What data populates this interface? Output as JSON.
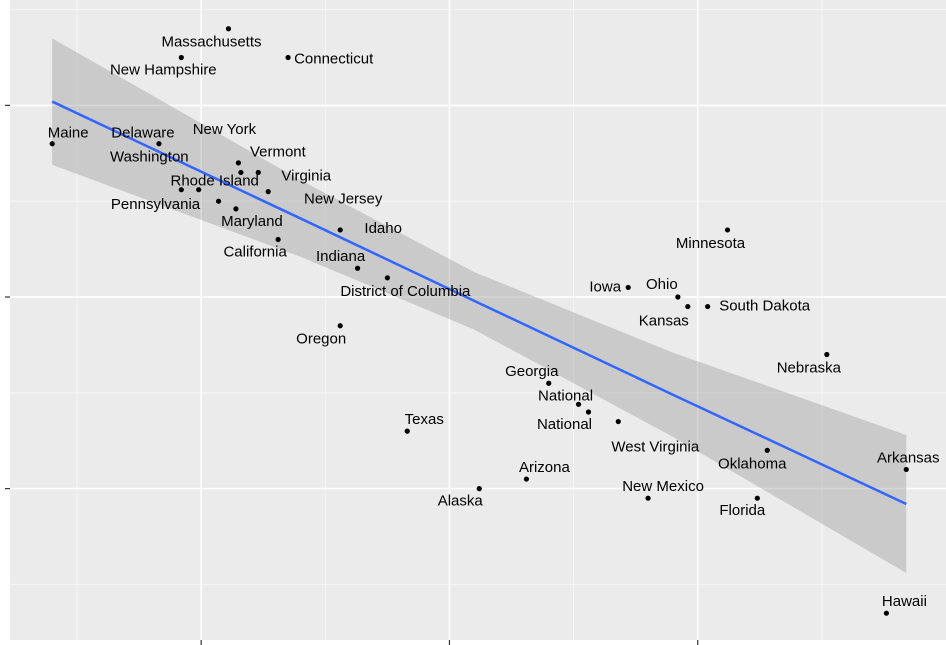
{
  "chart_data": {
    "type": "scatter",
    "xlim": [
      -0.77,
      3.0
    ],
    "ylim": [
      -0.79,
      2.55
    ],
    "xticks": [
      0,
      1,
      2
    ],
    "yticks": [
      0,
      1,
      2
    ],
    "grid": true,
    "color": "#000000",
    "fit_color": "#3366ff",
    "band_color": "#999999",
    "points": [
      {
        "label": "Massachusetts",
        "x": 0.11,
        "y": 2.4
      },
      {
        "label": "New Hampshire",
        "x": -0.08,
        "y": 2.25
      },
      {
        "label": "Connecticut",
        "x": 0.35,
        "y": 2.25
      },
      {
        "label": "Maine",
        "x": -0.6,
        "y": 1.8
      },
      {
        "label": "Delaware",
        "x": -0.17,
        "y": 1.8
      },
      {
        "label": "New York",
        "x": 0.15,
        "y": 1.7
      },
      {
        "label": "Vermont",
        "x": 0.16,
        "y": 1.65
      },
      {
        "label": "Virginia",
        "x": 0.23,
        "y": 1.65
      },
      {
        "label": "Washington",
        "x": -0.08,
        "y": 1.56
      },
      {
        "label": "Rhode Island",
        "x": -0.01,
        "y": 1.56
      },
      {
        "label": "New Jersey",
        "x": 0.27,
        "y": 1.55
      },
      {
        "label": "Pennsylvania",
        "x": 0.07,
        "y": 1.5
      },
      {
        "label": "Maryland",
        "x": 0.14,
        "y": 1.46
      },
      {
        "label": "California",
        "x": 0.31,
        "y": 1.3
      },
      {
        "label": "Idaho",
        "x": 0.56,
        "y": 1.35
      },
      {
        "label": "Indiana",
        "x": 0.63,
        "y": 1.15
      },
      {
        "label": "District of Columbia",
        "x": 0.75,
        "y": 1.1
      },
      {
        "label": "Oregon",
        "x": 0.56,
        "y": 0.85
      },
      {
        "label": "Iowa",
        "x": 1.72,
        "y": 1.05
      },
      {
        "label": "Minnesota",
        "x": 2.12,
        "y": 1.35
      },
      {
        "label": "Ohio",
        "x": 1.92,
        "y": 1.0
      },
      {
        "label": "Kansas",
        "x": 1.96,
        "y": 0.95
      },
      {
        "label": "South Dakota",
        "x": 2.04,
        "y": 0.95
      },
      {
        "label": "Nebraska",
        "x": 2.52,
        "y": 0.7
      },
      {
        "label": "Georgia",
        "x": 1.4,
        "y": 0.55
      },
      {
        "label": "National",
        "x": 1.52,
        "y": 0.44
      },
      {
        "label": "National",
        "x": 1.56,
        "y": 0.4
      },
      {
        "label": "West Virginia",
        "x": 1.68,
        "y": 0.35
      },
      {
        "label": "Texas",
        "x": 0.83,
        "y": 0.3
      },
      {
        "label": "Oklahoma",
        "x": 2.28,
        "y": 0.2
      },
      {
        "label": "Arkansas",
        "x": 2.84,
        "y": 0.1
      },
      {
        "label": "Arizona",
        "x": 1.31,
        "y": 0.05
      },
      {
        "label": "Alaska",
        "x": 1.12,
        "y": 0.0
      },
      {
        "label": "New Mexico",
        "x": 1.8,
        "y": -0.05
      },
      {
        "label": "Florida",
        "x": 2.24,
        "y": -0.05
      },
      {
        "label": "Hawaii",
        "x": 2.76,
        "y": -0.65
      }
    ],
    "fit": {
      "x": [
        -0.6,
        0.4,
        1.1,
        1.9,
        2.84
      ],
      "y": [
        2.02,
        1.41,
        0.98,
        0.49,
        -0.08
      ],
      "lower": [
        1.69,
        1.21,
        0.83,
        0.27,
        -0.44
      ],
      "upper": [
        2.35,
        1.61,
        1.13,
        0.71,
        0.28
      ]
    }
  }
}
